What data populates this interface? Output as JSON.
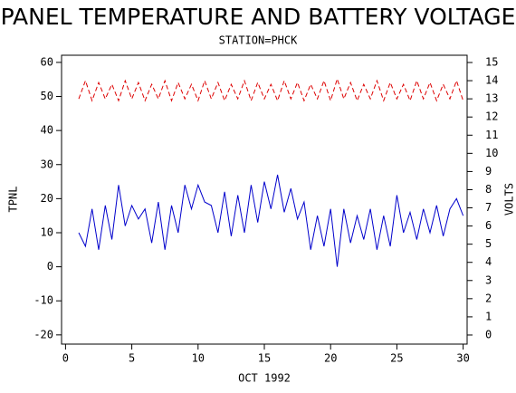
{
  "chart_data": {
    "type": "line",
    "title": "PANEL TEMPERATURE AND BATTERY VOLTAGE",
    "subtitle": "STATION=PHCK",
    "x_label": "OCT 1992",
    "y_label": "TPNL",
    "y2_label": "VOLTS",
    "x": [
      1,
      1.5,
      2,
      2.5,
      3,
      3.5,
      4,
      4.5,
      5,
      5.5,
      6,
      6.5,
      7,
      7.5,
      8,
      8.5,
      9,
      9.5,
      10,
      10.5,
      11,
      11.5,
      12,
      12.5,
      13,
      13.5,
      14,
      14.5,
      15,
      15.5,
      16,
      16.5,
      17,
      17.5,
      18,
      18.5,
      19,
      19.5,
      20,
      20.5,
      21,
      21.5,
      22,
      22.5,
      23,
      23.5,
      24,
      24.5,
      25,
      25.5,
      26,
      26.5,
      27,
      27.5,
      28,
      28.5,
      29,
      29.5,
      30
    ],
    "series": [
      {
        "name": "TPNL",
        "color": "#0000cc",
        "dash": false,
        "values": [
          10,
          6,
          17,
          5,
          18,
          8,
          24,
          12,
          18,
          14,
          17,
          7,
          19,
          5,
          18,
          10,
          24,
          17,
          24,
          19,
          18,
          10,
          22,
          9,
          21,
          10,
          24,
          13,
          25,
          17,
          27,
          16,
          23,
          14,
          19,
          5,
          15,
          6,
          17,
          0,
          17,
          7,
          15,
          8,
          17,
          5,
          15,
          6,
          21,
          10,
          16,
          8,
          17,
          10,
          18,
          9,
          17,
          20,
          15
        ]
      },
      {
        "name": "VOLTS",
        "color": "#dd0000",
        "dash": true,
        "axis": "y2",
        "values": [
          13.0,
          14.0,
          12.9,
          13.9,
          13.0,
          13.8,
          12.9,
          14.0,
          13.0,
          13.9,
          12.9,
          13.8,
          13.0,
          14.0,
          12.9,
          13.9,
          13.0,
          13.8,
          12.9,
          14.0,
          13.0,
          13.9,
          12.9,
          13.8,
          13.0,
          14.0,
          12.9,
          13.9,
          13.0,
          13.8,
          12.9,
          14.0,
          13.0,
          13.9,
          12.9,
          13.8,
          13.0,
          14.0,
          12.9,
          14.1,
          13.0,
          13.9,
          12.9,
          13.8,
          13.0,
          14.0,
          12.9,
          13.9,
          13.0,
          13.8,
          12.9,
          14.0,
          13.0,
          13.9,
          12.9,
          13.8,
          13.0,
          14.0,
          12.9
        ]
      }
    ],
    "xlim": [
      -0.3,
      30.3
    ],
    "xticks": [
      0,
      5,
      10,
      15,
      20,
      25,
      30
    ],
    "ylim": [
      -22.7,
      62.1
    ],
    "yticks": [
      -20,
      -10,
      0,
      10,
      20,
      30,
      40,
      50,
      60
    ],
    "y2lim": [
      -0.5,
      15.4
    ],
    "y2ticks": [
      0,
      1,
      2,
      3,
      4,
      5,
      6,
      7,
      8,
      9,
      10,
      11,
      12,
      13,
      14,
      15
    ]
  }
}
